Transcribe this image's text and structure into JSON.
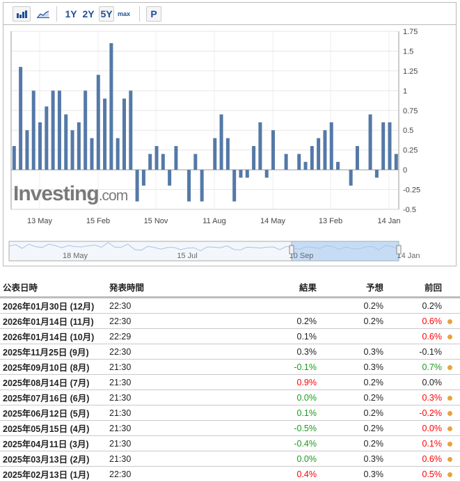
{
  "toolbar": {
    "bar_icon": "bar-chart-icon",
    "line_icon": "area-chart-icon",
    "ranges": [
      "1Y",
      "2Y",
      "5Y",
      "max"
    ],
    "active_range": "5Y",
    "p_label": "P"
  },
  "watermark": "Investing.com",
  "colors": {
    "bar": "#5479a7",
    "up": "#ff0000",
    "down": "#1a9a1a",
    "dot": "#e8a33c"
  },
  "chart_data": {
    "type": "bar",
    "values": [
      0.3,
      1.3,
      0.5,
      1.0,
      0.6,
      0.8,
      1.0,
      1.0,
      0.7,
      0.5,
      0.6,
      1.0,
      0.4,
      1.2,
      0.9,
      1.6,
      0.4,
      0.9,
      1.0,
      -0.4,
      -0.2,
      0.2,
      0.3,
      0.2,
      -0.2,
      0.3,
      0.0,
      -0.4,
      0.2,
      -0.4,
      0.0,
      0.4,
      0.7,
      0.4,
      -0.4,
      -0.1,
      -0.1,
      0.3,
      0.6,
      -0.1,
      0.5,
      0.0,
      0.2,
      0.0,
      0.2,
      0.1,
      0.3,
      0.4,
      0.5,
      0.6,
      0.1,
      0.0,
      -0.2,
      0.3,
      0.0,
      0.7,
      -0.1,
      0.6,
      0.6,
      0.2
    ],
    "ylim": [
      -0.5,
      1.75
    ],
    "yticks": [
      "1.75",
      "1.5",
      "1.25",
      "1",
      "0.75",
      "0.5",
      "0.25",
      "0",
      "-0.25",
      "-0.5"
    ],
    "ytick_values": [
      1.75,
      1.5,
      1.25,
      1,
      0.75,
      0.5,
      0.25,
      0,
      -0.25,
      -0.5
    ],
    "xticks": [
      "13 May",
      "15 Feb",
      "15 Nov",
      "11 Aug",
      "14 May",
      "13 Feb",
      "14 Jan"
    ],
    "grid": true,
    "navigator_labels": [
      "18 May",
      "15 Jul",
      "10 Sep",
      "14 Jan"
    ]
  },
  "table": {
    "headers": [
      "公表日時",
      "発表時間",
      "結果",
      "予想",
      "前回"
    ],
    "rows": [
      {
        "date": "2026年01月30日 (12月)",
        "time": "22:30",
        "actual": "",
        "actual_color": "",
        "forecast": "0.2%",
        "previous": "0.2%",
        "prev_color": "",
        "revised": false
      },
      {
        "date": "2026年01月14日 (11月)",
        "time": "22:30",
        "actual": "0.2%",
        "actual_color": "",
        "forecast": "0.2%",
        "previous": "0.6%",
        "prev_color": "up",
        "revised": true
      },
      {
        "date": "2026年01月14日 (10月)",
        "time": "22:29",
        "actual": "0.1%",
        "actual_color": "",
        "forecast": "",
        "previous": "0.6%",
        "prev_color": "up",
        "revised": true
      },
      {
        "date": "2025年11月25日 (9月)",
        "time": "22:30",
        "actual": "0.3%",
        "actual_color": "",
        "forecast": "0.3%",
        "previous": "-0.1%",
        "prev_color": "",
        "revised": false
      },
      {
        "date": "2025年09月10日 (8月)",
        "time": "21:30",
        "actual": "-0.1%",
        "actual_color": "down",
        "forecast": "0.3%",
        "previous": "0.7%",
        "prev_color": "down",
        "revised": true
      },
      {
        "date": "2025年08月14日 (7月)",
        "time": "21:30",
        "actual": "0.9%",
        "actual_color": "up",
        "forecast": "0.2%",
        "previous": "0.0%",
        "prev_color": "",
        "revised": false
      },
      {
        "date": "2025年07月16日 (6月)",
        "time": "21:30",
        "actual": "0.0%",
        "actual_color": "down",
        "forecast": "0.2%",
        "previous": "0.3%",
        "prev_color": "up",
        "revised": true
      },
      {
        "date": "2025年06月12日 (5月)",
        "time": "21:30",
        "actual": "0.1%",
        "actual_color": "down",
        "forecast": "0.2%",
        "previous": "-0.2%",
        "prev_color": "up",
        "revised": true
      },
      {
        "date": "2025年05月15日 (4月)",
        "time": "21:30",
        "actual": "-0.5%",
        "actual_color": "down",
        "forecast": "0.2%",
        "previous": "0.0%",
        "prev_color": "up",
        "revised": true
      },
      {
        "date": "2025年04月11日 (3月)",
        "time": "21:30",
        "actual": "-0.4%",
        "actual_color": "down",
        "forecast": "0.2%",
        "previous": "0.1%",
        "prev_color": "up",
        "revised": true
      },
      {
        "date": "2025年03月13日 (2月)",
        "time": "21:30",
        "actual": "0.0%",
        "actual_color": "down",
        "forecast": "0.3%",
        "previous": "0.6%",
        "prev_color": "up",
        "revised": true
      },
      {
        "date": "2025年02月13日 (1月)",
        "time": "22:30",
        "actual": "0.4%",
        "actual_color": "up",
        "forecast": "0.3%",
        "previous": "0.5%",
        "prev_color": "up",
        "revised": true
      }
    ]
  }
}
